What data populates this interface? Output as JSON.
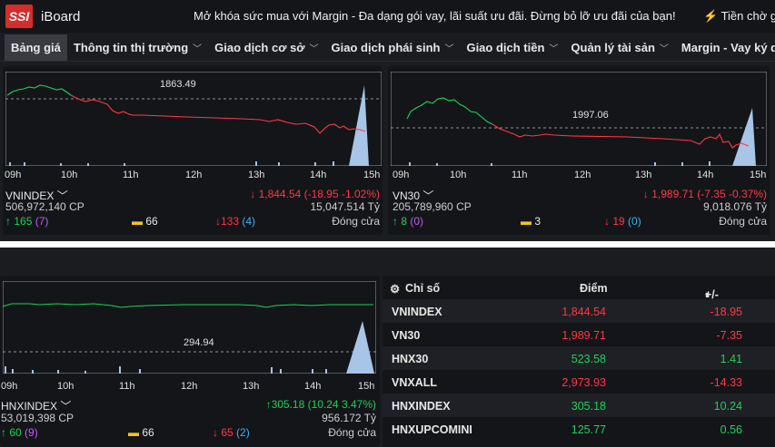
{
  "header": {
    "logo": "SSI",
    "brand": "iBoard",
    "promo": "Mở khóa sức mua với Margin - Đa dạng gói vay, lãi suất ưu đãi. Đừng bỏ lỡ ưu đãi của bạn!",
    "promo2": "Tiền chờ gi"
  },
  "nav": [
    {
      "label": "Bảng giá"
    },
    {
      "label": "Thông tin thị trường"
    },
    {
      "label": "Giao dịch cơ sở"
    },
    {
      "label": "Giao dịch phái sinh"
    },
    {
      "label": "Giao dịch tiền"
    },
    {
      "label": "Quản lý tài sản"
    },
    {
      "label": "Margin - Vay ký quỹ"
    }
  ],
  "time_ticks": [
    "09h",
    "10h",
    "11h",
    "12h",
    "13h",
    "14h",
    "15h"
  ],
  "panels": {
    "vnindex": {
      "ref": "1863.49",
      "name": "VNINDEX",
      "change": "1,844.54 (-18.95 -1.02%)",
      "volume": "506,972,140 CP",
      "value": "15,047.514 Tỷ",
      "up": "165",
      "up_ceil": "(7)",
      "flat": "66",
      "down": "133",
      "down_floor": "(4)",
      "status": "Đóng cửa"
    },
    "vn30": {
      "ref": "1997.06",
      "name": "VN30",
      "change": "1,989.71 (-7.35 -0.37%)",
      "volume": "205,789,960 CP",
      "value": "9,018.076 Tỷ",
      "up": "8",
      "up_ceil": "(0)",
      "flat": "3",
      "down": "19",
      "down_floor": "(0)",
      "status": "Đóng cửa"
    },
    "hnxindex": {
      "ref": "294.94",
      "name": "HNXINDEX",
      "change": "305.18 (10.24 3.47%)",
      "volume": "53,019,398 CP",
      "value": "956.172 Tỷ",
      "up": "60",
      "up_ceil": "(9)",
      "flat": "66",
      "down": "65",
      "down_floor": "(2)",
      "status": "Đóng cửa"
    }
  },
  "table": {
    "headers": {
      "name": "Chỉ số",
      "point": "Điểm",
      "change": "+/-"
    },
    "rows": [
      {
        "name": "VNINDEX",
        "point": "1,844.54",
        "change": "-18.95",
        "dir": "down"
      },
      {
        "name": "VN30",
        "point": "1,989.71",
        "change": "-7.35",
        "dir": "down"
      },
      {
        "name": "HNX30",
        "point": "523.58",
        "change": "1.41",
        "dir": "up"
      },
      {
        "name": "VNXALL",
        "point": "2,973.93",
        "change": "-14.33",
        "dir": "down"
      },
      {
        "name": "HNXINDEX",
        "point": "305.18",
        "change": "10.24",
        "dir": "up"
      },
      {
        "name": "HNXUPCOMINI",
        "point": "125.77",
        "change": "0.56",
        "dir": "up"
      }
    ]
  },
  "colors": {
    "up": "#1dd15a",
    "down": "#ff3747",
    "ref": "#aaaaaa",
    "volume": "#a8c4e6"
  }
}
